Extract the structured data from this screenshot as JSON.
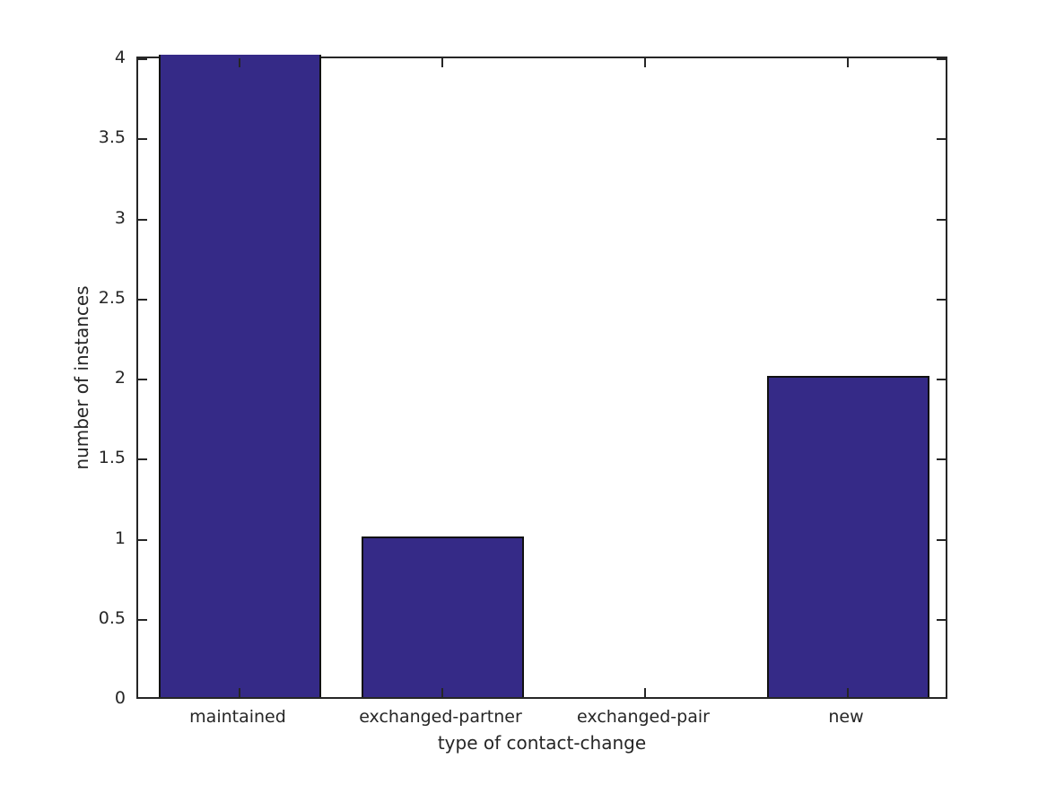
{
  "chart_data": {
    "type": "bar",
    "categories": [
      "maintained",
      "exchanged-partner",
      "exchanged-pair",
      "new"
    ],
    "values": [
      4,
      1,
      0,
      2
    ],
    "title": "",
    "xlabel": "type of contact-change",
    "ylabel": "number of instances",
    "ylim": [
      0,
      4
    ],
    "y_tick_values": [
      0,
      0.5,
      1,
      1.5,
      2,
      2.5,
      3,
      3.5,
      4
    ],
    "y_tick_labels": [
      "0",
      "0.5",
      "1",
      "1.5",
      "2",
      "2.5",
      "3",
      "3.5",
      "4"
    ],
    "bar_width_fraction": 0.8,
    "bar_color": "#352A87",
    "bar_edge_color": "#111111",
    "axis_color": "#262626",
    "background_color": "#ffffff",
    "grid": "off",
    "legend": "none",
    "box": "on",
    "tick_direction": "in"
  }
}
